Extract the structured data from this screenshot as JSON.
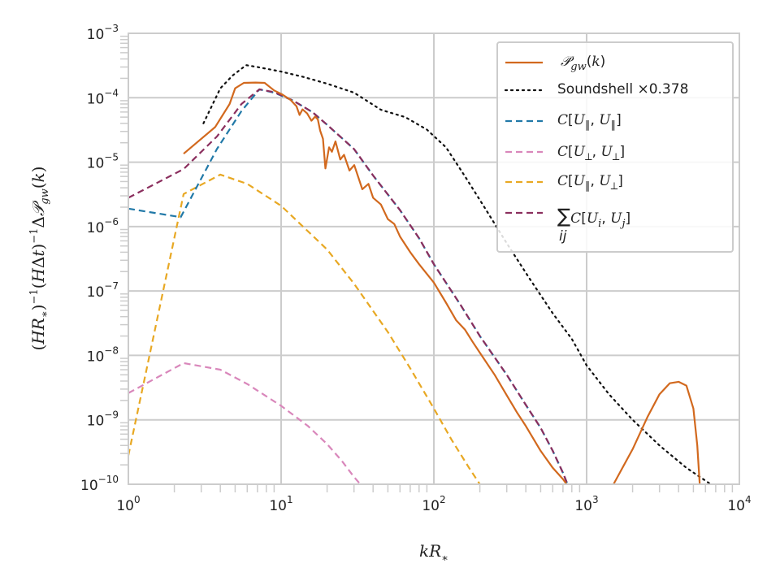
{
  "chart_data": {
    "type": "line",
    "xlabel": "kR∗",
    "ylabel": "(HR∗)⁻¹(HΔt)⁻¹Δ𝒫_gw(k)",
    "xscale": "log",
    "yscale": "log",
    "xlim": [
      1,
      10000
    ],
    "ylim": [
      1e-10,
      0.001
    ],
    "grid": true,
    "legend_position": "top-right",
    "x_tick_labels": [
      {
        "value": 1,
        "base": "10",
        "exp": "0"
      },
      {
        "value": 10,
        "base": "10",
        "exp": "1"
      },
      {
        "value": 100,
        "base": "10",
        "exp": "2"
      },
      {
        "value": 1000,
        "base": "10",
        "exp": "3"
      },
      {
        "value": 10000,
        "base": "10",
        "exp": "4"
      }
    ],
    "y_tick_labels": [
      {
        "value": 1e-10,
        "base": "10",
        "exp": "−10"
      },
      {
        "value": 1e-09,
        "base": "10",
        "exp": "−9"
      },
      {
        "value": 1e-08,
        "base": "10",
        "exp": "−8"
      },
      {
        "value": 1e-07,
        "base": "10",
        "exp": "−7"
      },
      {
        "value": 1e-06,
        "base": "10",
        "exp": "−6"
      },
      {
        "value": 1e-05,
        "base": "10",
        "exp": "−5"
      },
      {
        "value": 0.0001,
        "base": "10",
        "exp": "−4"
      },
      {
        "value": 0.001,
        "base": "10",
        "exp": "−3"
      }
    ],
    "series": [
      {
        "name": "𝒫̇_gw(k)",
        "color": "#d2691e",
        "dash": "solid",
        "points": [
          [
            2.3,
            1.35e-05
          ],
          [
            3.7,
            3.5e-05
          ],
          [
            4.6,
            8e-05
          ],
          [
            5.0,
            0.00014
          ],
          [
            5.7,
            0.00017
          ],
          [
            6.8,
            0.000172
          ],
          [
            7.8,
            0.00017
          ],
          [
            9.0,
            0.00013
          ],
          [
            10.2,
            0.000112
          ],
          [
            11.5,
            9.3e-05
          ],
          [
            12.6,
            7.4e-05
          ],
          [
            13.2,
            5.4e-05
          ],
          [
            13.8,
            6.6e-05
          ],
          [
            14.8,
            5.7e-05
          ],
          [
            15.8,
            4.4e-05
          ],
          [
            16.7,
            5.1e-05
          ],
          [
            17.4,
            4.6e-05
          ],
          [
            18.0,
            3.1e-05
          ],
          [
            18.8,
            2.3e-05
          ],
          [
            19.5,
            8e-06
          ],
          [
            20.6,
            1.7e-05
          ],
          [
            21.5,
            1.45e-05
          ],
          [
            22.7,
            2.1e-05
          ],
          [
            24.4,
            1.1e-05
          ],
          [
            25.8,
            1.3e-05
          ],
          [
            28.0,
            7.4e-06
          ],
          [
            30.1,
            9e-06
          ],
          [
            34.0,
            3.8e-06
          ],
          [
            37.3,
            4.6e-06
          ],
          [
            40,
            2.8e-06
          ],
          [
            45,
            2.2e-06
          ],
          [
            50,
            1.3e-06
          ],
          [
            55,
            1.1e-06
          ],
          [
            60,
            7e-07
          ],
          [
            70,
            4e-07
          ],
          [
            80,
            2.6e-07
          ],
          [
            100,
            1.35e-07
          ],
          [
            120,
            6.6e-08
          ],
          [
            140,
            3.5e-08
          ],
          [
            160,
            2.5e-08
          ],
          [
            180,
            1.6e-08
          ],
          [
            200,
            1.1e-08
          ],
          [
            250,
            5e-09
          ],
          [
            300,
            2.4e-09
          ],
          [
            350,
            1.3e-09
          ],
          [
            400,
            8e-10
          ],
          [
            500,
            3.3e-10
          ],
          [
            600,
            1.8e-10
          ],
          [
            700,
            1.2e-10
          ],
          [
            740,
            1e-10
          ]
        ]
      },
      {
        "name": "Soundshell ×0.378",
        "color": "#111111",
        "dash": "dotted",
        "points": [
          [
            3.1,
            4e-05
          ],
          [
            4.0,
            0.00014
          ],
          [
            4.8,
            0.00022
          ],
          [
            5.9,
            0.00032
          ],
          [
            7.0,
            0.0003
          ],
          [
            10,
            0.000255
          ],
          [
            14,
            0.00021
          ],
          [
            20,
            0.000165
          ],
          [
            30,
            0.00012
          ],
          [
            45,
            6.5e-05
          ],
          [
            65,
            5e-05
          ],
          [
            90,
            3.2e-05
          ],
          [
            120,
            1.7e-05
          ],
          [
            160,
            6e-06
          ],
          [
            220,
            1.8e-06
          ],
          [
            300,
            5.5e-07
          ],
          [
            420,
            1.6e-07
          ],
          [
            600,
            4.5e-08
          ],
          [
            800,
            1.8e-08
          ],
          [
            1000,
            7e-09
          ],
          [
            1400,
            2.5e-09
          ],
          [
            2000,
            1e-09
          ],
          [
            3000,
            4e-10
          ],
          [
            4500,
            1.8e-10
          ],
          [
            6500,
            1e-10
          ]
        ]
      },
      {
        "name": "C[U∥, U∥]",
        "color": "#2179a8",
        "dash": "dashed",
        "points": [
          [
            1.0,
            1.9e-06
          ],
          [
            2.2,
            1.4e-06
          ],
          [
            3.8,
            1.6e-05
          ],
          [
            5.5,
            6.2e-05
          ],
          [
            7.2,
            0.000135
          ],
          [
            9,
            0.00012
          ],
          [
            12,
            9e-05
          ],
          [
            16,
            6e-05
          ],
          [
            20,
            3.8e-05
          ],
          [
            30,
            1.6e-05
          ],
          [
            40,
            6.2e-06
          ],
          [
            60,
            1.8e-06
          ],
          [
            80,
            6.6e-07
          ],
          [
            100,
            2.6e-07
          ],
          [
            150,
            6e-08
          ],
          [
            200,
            2e-08
          ],
          [
            300,
            5e-09
          ],
          [
            400,
            1.7e-09
          ],
          [
            500,
            7.5e-10
          ],
          [
            600,
            3.3e-10
          ],
          [
            700,
            1.5e-10
          ],
          [
            750,
            1e-10
          ]
        ]
      },
      {
        "name": "C[U⟂, U⟂]",
        "color": "#d987bb",
        "dash": "dashed",
        "points": [
          [
            1.0,
            2.6e-09
          ],
          [
            2.3,
            7.6e-09
          ],
          [
            4.0,
            6e-09
          ],
          [
            6,
            3.6e-09
          ],
          [
            10,
            1.65e-09
          ],
          [
            15,
            8e-10
          ],
          [
            20,
            4.2e-10
          ],
          [
            25,
            2.3e-10
          ],
          [
            30,
            1.3e-10
          ],
          [
            33,
            1e-10
          ]
        ]
      },
      {
        "name": "C[U∥, U⟂]",
        "color": "#e8a823",
        "dash": "dashed",
        "points": [
          [
            1.0,
            2.8e-10
          ],
          [
            2.3,
            3.2e-06
          ],
          [
            4.0,
            6.4e-06
          ],
          [
            6,
            4.6e-06
          ],
          [
            10,
            2.1e-06
          ],
          [
            20,
            4.4e-07
          ],
          [
            30,
            1.3e-07
          ],
          [
            50,
            2.3e-08
          ],
          [
            70,
            6.3e-09
          ],
          [
            100,
            1.5e-09
          ],
          [
            130,
            5e-10
          ],
          [
            170,
            1.8e-10
          ],
          [
            200,
            1e-10
          ]
        ]
      },
      {
        "name": "∑ij C[Ui, Uj]",
        "color": "#8b2f5e",
        "dash": "dashed",
        "points": [
          [
            1.0,
            2.8e-06
          ],
          [
            2.3,
            7.8e-06
          ],
          [
            3.8,
            2.5e-05
          ],
          [
            5.5,
            8e-05
          ],
          [
            7.2,
            0.000135
          ],
          [
            9,
            0.000122
          ],
          [
            12,
            9e-05
          ],
          [
            16,
            6e-05
          ],
          [
            20,
            3.8e-05
          ],
          [
            30,
            1.6e-05
          ],
          [
            40,
            6.2e-06
          ],
          [
            60,
            1.8e-06
          ],
          [
            80,
            6.6e-07
          ],
          [
            100,
            2.6e-07
          ],
          [
            150,
            6e-08
          ],
          [
            200,
            2e-08
          ],
          [
            300,
            5e-09
          ],
          [
            400,
            1.7e-09
          ],
          [
            500,
            7.5e-10
          ],
          [
            600,
            3.3e-10
          ],
          [
            700,
            1.5e-10
          ],
          [
            750,
            1e-10
          ]
        ]
      },
      {
        "name": "𝒫̇_gw(k) high-k peak",
        "legend": false,
        "color": "#d2691e",
        "dash": "solid",
        "points": [
          [
            1500,
            1e-10
          ],
          [
            2000,
            3.5e-10
          ],
          [
            2500,
            1.1e-09
          ],
          [
            3000,
            2.5e-09
          ],
          [
            3500,
            3.7e-09
          ],
          [
            4000,
            3.9e-09
          ],
          [
            4500,
            3.4e-09
          ],
          [
            5000,
            1.5e-09
          ],
          [
            5300,
            4e-10
          ],
          [
            5500,
            1e-10
          ]
        ]
      }
    ],
    "legend_entries": [
      {
        "type": "math",
        "color": "#d2691e",
        "dash": "solid"
      },
      {
        "text": "Soundshell ×0.378",
        "color": "#111111",
        "dash": "dotted"
      },
      {
        "type": "math",
        "color": "#2179a8",
        "dash": "dashed"
      },
      {
        "type": "math",
        "color": "#d987bb",
        "dash": "dashed"
      },
      {
        "type": "math",
        "color": "#e8a823",
        "dash": "dashed"
      },
      {
        "type": "math",
        "color": "#8b2f5e",
        "dash": "dashed"
      }
    ]
  }
}
